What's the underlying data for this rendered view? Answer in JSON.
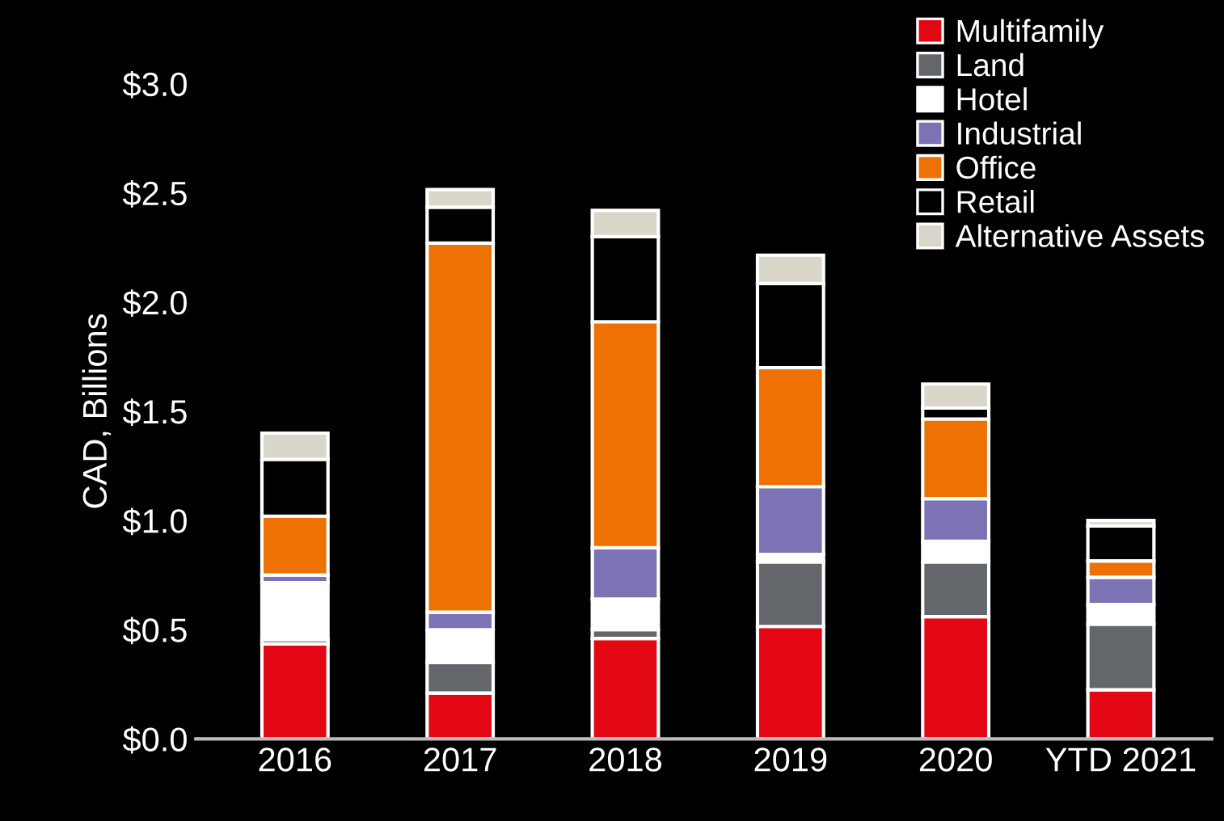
{
  "chart_data": {
    "type": "bar",
    "stacked": true,
    "ylabel": "CAD, Billions",
    "categories": [
      "2016",
      "2017",
      "2018",
      "2019",
      "2020",
      "YTD 2021"
    ],
    "series": [
      {
        "name": "Multifamily",
        "color": "#e30613",
        "values": [
          0.435,
          0.21,
          0.46,
          0.515,
          0.56,
          0.225
        ]
      },
      {
        "name": "Land",
        "color": "#63666a",
        "values": [
          0.02,
          0.14,
          0.04,
          0.295,
          0.25,
          0.3
        ]
      },
      {
        "name": "Hotel",
        "color": "#ffffff",
        "values": [
          0.26,
          0.15,
          0.14,
          0.035,
          0.095,
          0.09
        ]
      },
      {
        "name": "Industrial",
        "color": "#7b73b3",
        "values": [
          0.035,
          0.08,
          0.235,
          0.31,
          0.195,
          0.125
        ]
      },
      {
        "name": "Office",
        "color": "#ee7203",
        "values": [
          0.27,
          1.69,
          1.035,
          0.545,
          0.365,
          0.075
        ]
      },
      {
        "name": "Retail",
        "color": "#000000",
        "values": [
          0.26,
          0.165,
          0.39,
          0.385,
          0.05,
          0.16
        ]
      },
      {
        "name": "Alternative Assets",
        "color": "#dbd6ca",
        "values": [
          0.12,
          0.08,
          0.12,
          0.13,
          0.11,
          0.025
        ]
      }
    ],
    "ylim": [
      0,
      3.0
    ],
    "yticks": [
      {
        "value": 0,
        "label": "$0.0"
      },
      {
        "value": 0.5,
        "label": "$0.5"
      },
      {
        "value": 1.0,
        "label": "$1.0"
      },
      {
        "value": 1.5,
        "label": "$1.5"
      },
      {
        "value": 2.0,
        "label": "$2.0"
      },
      {
        "value": 2.5,
        "label": "$2.5"
      },
      {
        "value": 3.0,
        "label": "$3.0"
      }
    ],
    "legend": "top right"
  }
}
